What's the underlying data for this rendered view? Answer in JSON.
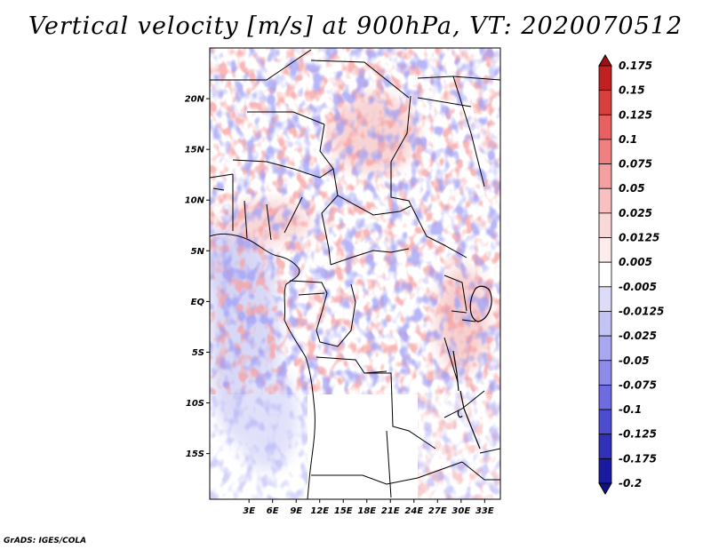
{
  "title": "Vertical velocity [m/s] at 900hPa, VT: 2020070512",
  "credit": "GrADS: IGES/COLA",
  "map": {
    "lon_range": [
      -2,
      35
    ],
    "lat_range": [
      -19.5,
      25
    ],
    "lat_ticks": [
      {
        "value": 20,
        "label": "20N"
      },
      {
        "value": 15,
        "label": "15N"
      },
      {
        "value": 10,
        "label": "10N"
      },
      {
        "value": 5,
        "label": "5N"
      },
      {
        "value": 0,
        "label": "EQ"
      },
      {
        "value": -5,
        "label": "5S"
      },
      {
        "value": -10,
        "label": "10S"
      },
      {
        "value": -15,
        "label": "15S"
      }
    ],
    "lon_ticks": [
      {
        "value": 3,
        "label": "3E"
      },
      {
        "value": 6,
        "label": "6E"
      },
      {
        "value": 9,
        "label": "9E"
      },
      {
        "value": 12,
        "label": "12E"
      },
      {
        "value": 15,
        "label": "15E"
      },
      {
        "value": 18,
        "label": "18E"
      },
      {
        "value": 21,
        "label": "21E"
      },
      {
        "value": 24,
        "label": "24E"
      },
      {
        "value": 27,
        "label": "27E"
      },
      {
        "value": 30,
        "label": "30E"
      },
      {
        "value": 33,
        "label": "33E"
      }
    ]
  },
  "colorbar": {
    "labels": [
      "0.175",
      "0.15",
      "0.125",
      "0.1",
      "0.075",
      "0.05",
      "0.025",
      "0.0125",
      "0.005",
      "-0.005",
      "-0.0125",
      "-0.025",
      "-0.05",
      "-0.075",
      "-0.1",
      "-0.125",
      "-0.175",
      "-0.2"
    ],
    "colors": [
      "#a01010",
      "#c02020",
      "#d84040",
      "#e86060",
      "#f08080",
      "#f4a0a0",
      "#f8c0c0",
      "#fbd8d8",
      "#fdecec",
      "#ffffff",
      "#dcdcf8",
      "#c4c4f4",
      "#a8a8f0",
      "#8c8ce8",
      "#6c6ce0",
      "#4c4cd0",
      "#3030b8",
      "#1a1aa0",
      "#10108a"
    ]
  }
}
